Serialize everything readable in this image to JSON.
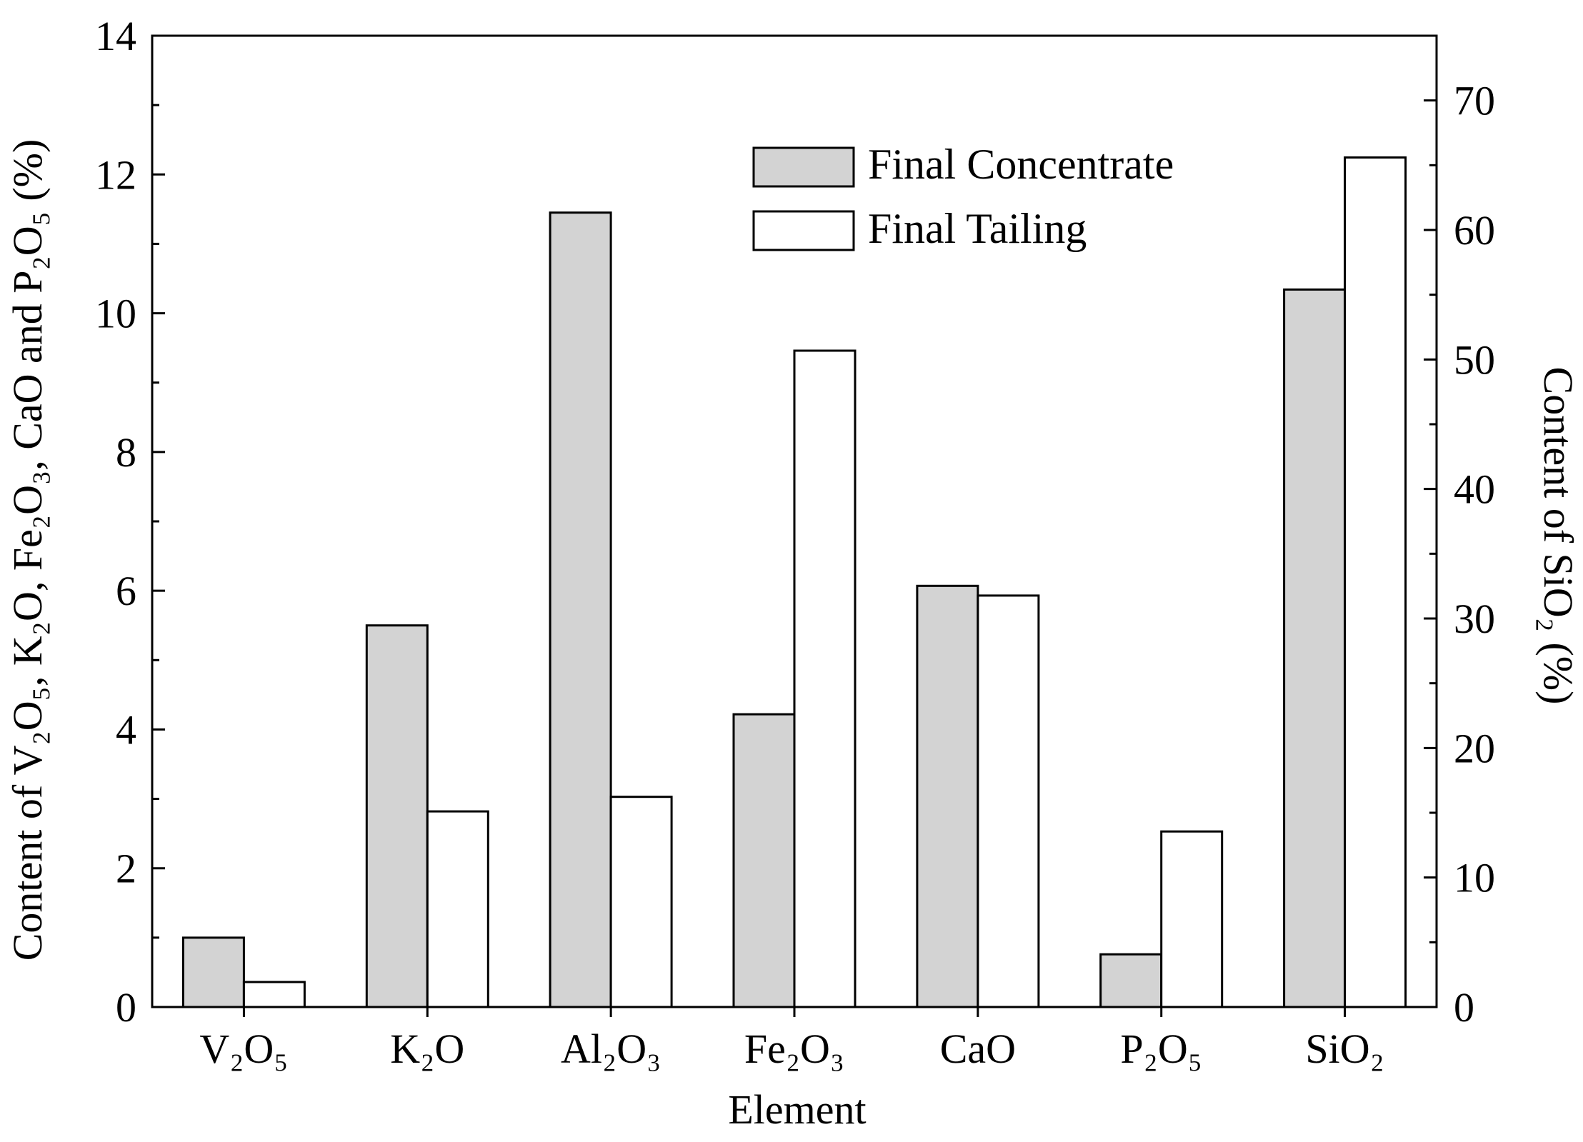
{
  "chart_data": {
    "type": "bar",
    "title": "",
    "xlabel": "Element",
    "ylabel_left": "Content of V₂O₅, K₂O, Fe₂O₃, CaO and P₂O₅ (%)",
    "ylabel_right": "Content of SiO₂ (%)",
    "categories": [
      "V₂O₅",
      "K₂O",
      "Al₂O₃",
      "Fe₂O₃",
      "CaO",
      "P₂O₅",
      "SiO₂"
    ],
    "left_axis": {
      "ylim": [
        0,
        14
      ],
      "ticks": [
        "0",
        "2",
        "4",
        "6",
        "8",
        "10",
        "12",
        "14"
      ]
    },
    "right_axis": {
      "ylim": [
        0,
        75
      ],
      "ticks": [
        "0",
        "10",
        "20",
        "30",
        "40",
        "50",
        "60",
        "70"
      ],
      "applies_to": "SiO₂"
    },
    "series": [
      {
        "name": "Final Concentrate",
        "color": "#d3d3d3",
        "values": [
          1.0,
          5.5,
          11.45,
          4.22,
          6.07,
          0.76,
          55.4
        ]
      },
      {
        "name": "Final Tailing",
        "color": "#ffffff",
        "values": [
          0.36,
          2.82,
          3.03,
          9.46,
          5.93,
          2.53,
          65.6
        ]
      }
    ],
    "legend": {
      "position": "top-right",
      "items": [
        "Final Concentrate",
        "Final Tailing"
      ]
    }
  }
}
